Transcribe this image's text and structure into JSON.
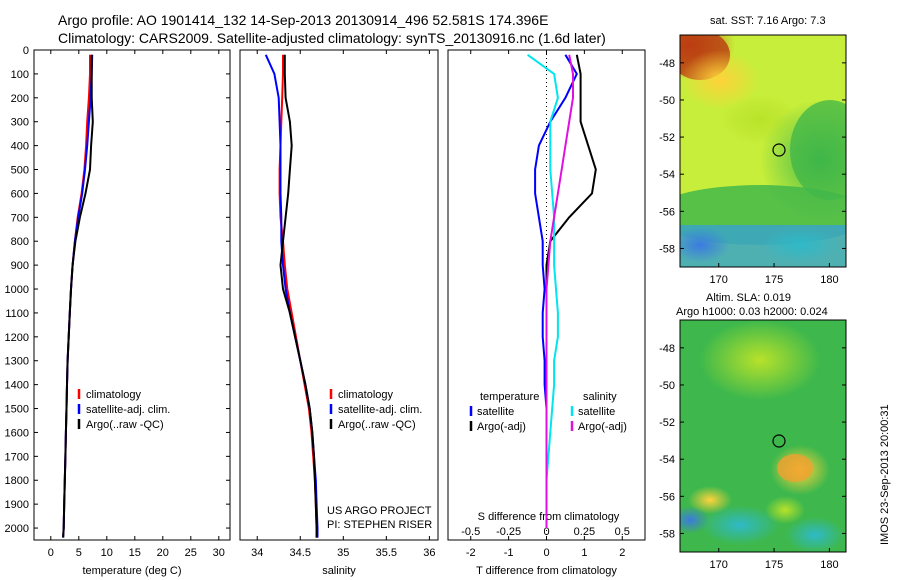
{
  "header": {
    "line1": "Argo profile: AO 1901414_132 14-Sep-2013 20130914_496 52.581S 174.396E",
    "line2": "Climatology: CARS2009. Satellite-adjusted climatology: synTS_20130916.nc (1.6d later)"
  },
  "colors": {
    "climatology": "#ff0000",
    "satellite": "#0000ff",
    "argo": "#000000",
    "salinity_satellite": "#00e5ee",
    "salinity_argo": "#e010e0"
  },
  "chart_data": [
    {
      "type": "line",
      "xlabel": "temperature (deg C)",
      "ylabel": "",
      "xlim": [
        -3,
        32
      ],
      "ylim": [
        2050,
        0
      ],
      "xticks": [
        0,
        5,
        10,
        15,
        20,
        25,
        30
      ],
      "yticks": [
        0,
        100,
        200,
        300,
        400,
        500,
        600,
        700,
        800,
        900,
        1000,
        1100,
        1200,
        1300,
        1400,
        1500,
        1600,
        1700,
        1800,
        1900,
        2000
      ],
      "legend": [
        "climatology",
        "satellite-adj. clim.",
        "Argo(..raw -QC)"
      ],
      "series": [
        {
          "name": "climatology",
          "color": "#ff0000",
          "x": [
            7.0,
            7.0,
            6.8,
            6.5,
            6.3,
            6.0,
            5.5,
            4.8,
            4.3,
            3.9,
            3.6,
            3.4,
            3.2,
            3.0,
            2.9,
            2.8,
            2.7,
            2.6,
            2.5,
            2.4,
            2.3,
            2.2
          ],
          "y": [
            20,
            100,
            200,
            300,
            400,
            500,
            600,
            700,
            800,
            900,
            1000,
            1100,
            1200,
            1300,
            1400,
            1500,
            1600,
            1700,
            1800,
            1900,
            2000,
            2040
          ]
        },
        {
          "name": "satellite-adj. clim.",
          "color": "#0000ff",
          "x": [
            7.4,
            7.3,
            7.1,
            6.8,
            6.5,
            6.1,
            5.6,
            4.9,
            4.3,
            3.9,
            3.6,
            3.4,
            3.2,
            3.0,
            2.9,
            2.8,
            2.7,
            2.6,
            2.5,
            2.4,
            2.3,
            2.2
          ],
          "y": [
            20,
            100,
            200,
            300,
            400,
            500,
            600,
            700,
            800,
            900,
            1000,
            1100,
            1200,
            1300,
            1400,
            1500,
            1600,
            1700,
            1800,
            1900,
            2000,
            2040
          ]
        },
        {
          "name": "Argo(..raw -QC)",
          "color": "#000000",
          "x": [
            7.3,
            7.3,
            7.3,
            7.5,
            7.2,
            7.0,
            6.2,
            5.2,
            4.4,
            3.9,
            3.6,
            3.4,
            3.2,
            3.0,
            2.9,
            2.8,
            2.7,
            2.6,
            2.5,
            2.4,
            2.3,
            2.2
          ],
          "y": [
            20,
            100,
            200,
            300,
            400,
            500,
            600,
            700,
            800,
            900,
            1000,
            1100,
            1200,
            1300,
            1400,
            1500,
            1600,
            1700,
            1800,
            1900,
            2000,
            2040
          ]
        }
      ]
    },
    {
      "type": "line",
      "xlabel": "salinity",
      "xlim": [
        33.8,
        36.1
      ],
      "ylim": [
        2050,
        0
      ],
      "xticks": [
        34,
        34.5,
        35,
        35.5,
        36
      ],
      "legend": [
        "climatology",
        "satellite-adj. clim.",
        "Argo(..raw -QC)"
      ],
      "annotations": [
        "US ARGO PROJECT",
        "PI: STEPHEN RISER"
      ],
      "series": [
        {
          "name": "climatology",
          "color": "#ff0000",
          "x": [
            34.3,
            34.3,
            34.29,
            34.28,
            34.27,
            34.26,
            34.26,
            34.27,
            34.3,
            34.32,
            34.35,
            34.4,
            34.45,
            34.5,
            34.55,
            34.6,
            34.63,
            34.65,
            34.67,
            34.68,
            34.69,
            34.69
          ],
          "y": [
            20,
            100,
            200,
            300,
            400,
            500,
            600,
            700,
            800,
            900,
            1000,
            1100,
            1200,
            1300,
            1400,
            1500,
            1600,
            1700,
            1800,
            1900,
            2000,
            2040
          ]
        },
        {
          "name": "satellite-adj. clim.",
          "color": "#0000ff",
          "x": [
            34.1,
            34.2,
            34.25,
            34.26,
            34.27,
            34.27,
            34.27,
            34.28,
            34.28,
            34.3,
            34.33,
            34.38,
            34.44,
            34.5,
            34.56,
            34.61,
            34.64,
            34.66,
            34.68,
            34.69,
            34.7,
            34.7
          ],
          "y": [
            20,
            100,
            200,
            300,
            400,
            500,
            600,
            700,
            800,
            900,
            1000,
            1100,
            1200,
            1300,
            1400,
            1500,
            1600,
            1700,
            1800,
            1900,
            2000,
            2040
          ]
        },
        {
          "name": "Argo(..raw -QC)",
          "color": "#000000",
          "x": [
            34.32,
            34.32,
            34.33,
            34.38,
            34.4,
            34.38,
            34.36,
            34.33,
            34.3,
            34.27,
            34.3,
            34.38,
            34.44,
            34.5,
            34.56,
            34.61,
            34.64,
            34.66,
            34.67,
            34.68,
            34.69,
            34.69
          ],
          "y": [
            20,
            100,
            200,
            300,
            400,
            500,
            600,
            700,
            800,
            900,
            1000,
            1100,
            1200,
            1300,
            1400,
            1500,
            1600,
            1700,
            1800,
            1900,
            2000,
            2040
          ]
        }
      ]
    },
    {
      "type": "line",
      "xlabel": "T difference from climatology",
      "xlabel_top": "S difference from climatology",
      "xlim": [
        -2.6,
        2.6
      ],
      "ylim": [
        2050,
        0
      ],
      "xticks": [
        -2,
        -1,
        0,
        1,
        2
      ],
      "xticklabels_top": [
        "-0.5",
        "-0.25",
        "0",
        "0.25",
        "0.5"
      ],
      "legend_left_title": "temperature",
      "legend_right_title": "salinity",
      "legend": [
        "satellite",
        "Argo(-adj)",
        "satellite",
        "Argo(-adj)"
      ],
      "series": [
        {
          "name": "satellite",
          "color": "#0000ff",
          "x": [
            0.5,
            0.8,
            0.5,
            0.1,
            -0.2,
            -0.3,
            -0.3,
            -0.2,
            -0.1,
            -0.1,
            -0.05,
            -0.1,
            -0.1,
            -0.05,
            -0.05,
            0,
            0,
            0,
            0,
            0,
            0
          ],
          "y": [
            20,
            100,
            200,
            300,
            400,
            500,
            600,
            700,
            800,
            900,
            1000,
            1100,
            1200,
            1300,
            1400,
            1500,
            1600,
            1700,
            1800,
            1900,
            2000
          ]
        },
        {
          "name": "Argo(-adj)",
          "color": "#000000",
          "x": [
            0.8,
            0.9,
            0.9,
            0.9,
            1.1,
            1.3,
            1.2,
            0.6,
            0.1,
            0,
            0,
            0,
            0,
            0,
            0,
            0,
            0,
            0,
            0,
            0,
            0
          ],
          "y": [
            20,
            100,
            200,
            300,
            400,
            500,
            600,
            700,
            800,
            900,
            1000,
            1100,
            1200,
            1300,
            1400,
            1500,
            1600,
            1700,
            1800,
            1900,
            2000
          ]
        },
        {
          "name": "satellite",
          "color": "#00e5ee",
          "x": [
            -0.5,
            0.2,
            0.3,
            0.1,
            0.1,
            0.1,
            0.15,
            0.2,
            0.2,
            0.2,
            0.25,
            0.3,
            0.3,
            0.2,
            0.2,
            0.15,
            0.1,
            0.05,
            0,
            0,
            0
          ],
          "y": [
            20,
            100,
            200,
            300,
            400,
            500,
            600,
            700,
            800,
            900,
            1000,
            1100,
            1200,
            1300,
            1400,
            1500,
            1600,
            1700,
            1800,
            1900,
            2000
          ]
        },
        {
          "name": "Argo(-adj)",
          "color": "#e010e0",
          "x": [
            0.6,
            0.7,
            0.7,
            0.6,
            0.5,
            0.4,
            0.3,
            0.2,
            0.1,
            0.05,
            0,
            0,
            0,
            0,
            0,
            0,
            0,
            0,
            0,
            0,
            0
          ],
          "y": [
            20,
            100,
            200,
            300,
            400,
            500,
            600,
            700,
            800,
            900,
            1000,
            1100,
            1200,
            1300,
            1400,
            1500,
            1600,
            1700,
            1800,
            1900,
            2000
          ]
        }
      ]
    },
    {
      "type": "heatmap",
      "title": "sat. SST: 7.16  Argo: 7.3",
      "xlim": [
        166.5,
        181.5
      ],
      "ylim": [
        -59,
        -46.5
      ],
      "xticks": [
        170,
        175,
        180
      ],
      "yticks": [
        -48,
        -50,
        -52,
        -54,
        -56,
        -58
      ],
      "marker": {
        "lon": 174.4,
        "lat": -52.58
      }
    },
    {
      "type": "heatmap",
      "title": "Altim. SLA: 0.019",
      "subtitle": "Argo h1000: 0.03 h2000: 0.024",
      "xlim": [
        166.5,
        181.5
      ],
      "ylim": [
        -59,
        -46.5
      ],
      "xticks": [
        170,
        175,
        180
      ],
      "yticks": [
        -48,
        -50,
        -52,
        -54,
        -56,
        -58
      ],
      "marker": {
        "lon": 174.4,
        "lat": -52.58
      }
    }
  ],
  "footer": {
    "stamp": "IMOS 23-Sep-2013 20:00:31"
  }
}
